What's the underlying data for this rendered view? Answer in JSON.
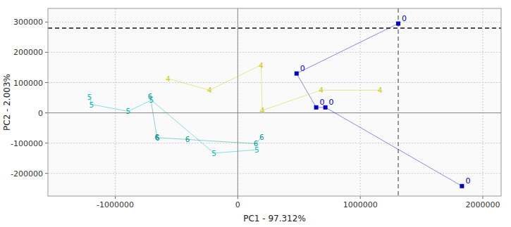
{
  "chart_data": {
    "type": "scatter",
    "xlabel": "PC1 - 97.312%",
    "ylabel": "PC2 - 2.003%",
    "xlim": [
      -1550000,
      2150000
    ],
    "ylim": [
      -275000,
      345000
    ],
    "xticks": [
      -1000000,
      0,
      1000000,
      2000000
    ],
    "yticks": [
      -200000,
      -100000,
      0,
      100000,
      200000,
      300000
    ],
    "grid": true,
    "series": [
      {
        "name": "0",
        "color": "#0000cc",
        "marker": "square",
        "x": [
          1310000,
          480000,
          640000,
          715000,
          1830000
        ],
        "values": [
          295000,
          130000,
          18000,
          18000,
          -242000
        ]
      },
      {
        "name": "4",
        "color": "#cccc00",
        "marker": "text",
        "x": [
          -570000,
          -230000,
          190000,
          200000,
          680000,
          1160000
        ],
        "values": [
          113000,
          75000,
          158000,
          8000,
          75000,
          75000
        ]
      },
      {
        "name": "5",
        "color": "#00bbbb",
        "marker": "text",
        "x": [
          -1210000,
          -1195000,
          -895000,
          -705000,
          -195000,
          155000
        ],
        "values": [
          53000,
          28000,
          5000,
          42000,
          -133000,
          -122000
        ]
      },
      {
        "name": "6",
        "color": "#009999",
        "marker": "text",
        "x": [
          -715000,
          -660000,
          -655000,
          -410000,
          148000,
          195000
        ],
        "values": [
          55000,
          -80000,
          -82000,
          -88000,
          -102000,
          -80000
        ]
      }
    ],
    "reference_lines": [
      {
        "axis": "y",
        "value": 0,
        "color": "#888888",
        "line_style": "solid"
      },
      {
        "axis": "x",
        "value": 0,
        "color": "#888888",
        "line_style": "solid"
      },
      {
        "axis": "y",
        "value": 280000,
        "color": "#111111",
        "line_style": "dashed"
      },
      {
        "axis": "x",
        "value": 1310000,
        "color": "#666666",
        "line_style": "dashed"
      }
    ]
  }
}
